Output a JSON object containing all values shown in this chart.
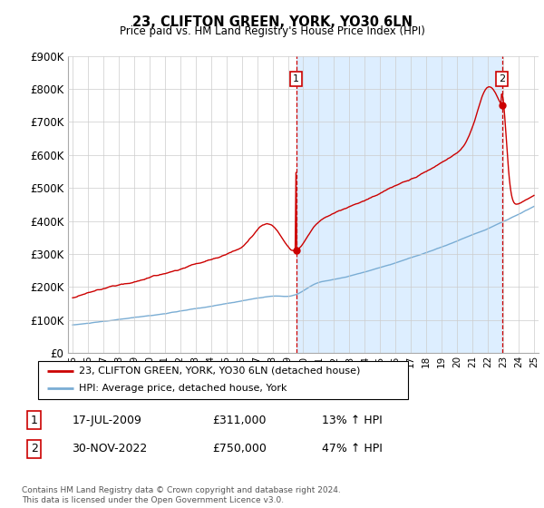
{
  "title": "23, CLIFTON GREEN, YORK, YO30 6LN",
  "subtitle": "Price paid vs. HM Land Registry's House Price Index (HPI)",
  "legend_line1": "23, CLIFTON GREEN, YORK, YO30 6LN (detached house)",
  "legend_line2": "HPI: Average price, detached house, York",
  "annotation1_date": "17-JUL-2009",
  "annotation1_price": "£311,000",
  "annotation1_hpi": "13% ↑ HPI",
  "annotation2_date": "30-NOV-2022",
  "annotation2_price": "£750,000",
  "annotation2_hpi": "47% ↑ HPI",
  "footnote": "Contains HM Land Registry data © Crown copyright and database right 2024.\nThis data is licensed under the Open Government Licence v3.0.",
  "sale1_year": 2009.54,
  "sale1_price": 311000,
  "sale2_year": 2022.92,
  "sale2_price": 750000,
  "price_color": "#cc0000",
  "hpi_color": "#7aadd4",
  "shade_color": "#ddeeff",
  "vline_color": "#cc0000",
  "grid_color": "#cccccc"
}
